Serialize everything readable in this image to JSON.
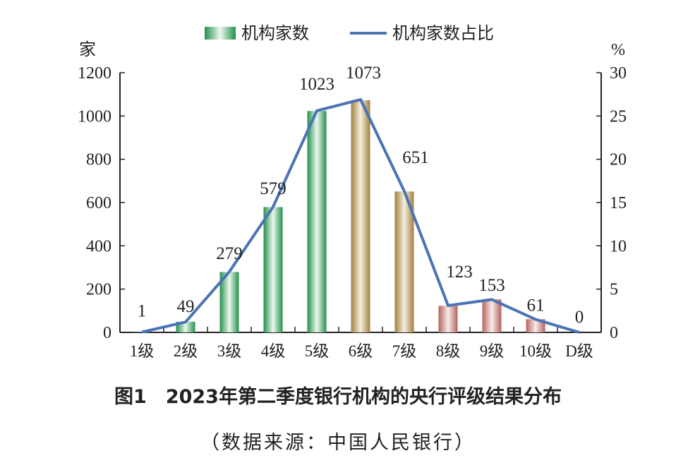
{
  "chart_data": {
    "type": "bar+line",
    "title": "图1　2023年第二季度银行机构的央行评级结果分布",
    "subtitle": "（数据来源：中国人民银行）",
    "categories": [
      "1级",
      "2级",
      "3级",
      "4级",
      "5级",
      "6级",
      "7级",
      "8级",
      "9级",
      "10级",
      "D级"
    ],
    "series": [
      {
        "name": "机构家数",
        "type": "bar",
        "axis": "left",
        "values": [
          1,
          49,
          279,
          579,
          1023,
          1073,
          651,
          123,
          153,
          61,
          0
        ],
        "colors": [
          "#2e9a55",
          "#2e9a55",
          "#2e9a55",
          "#2e9a55",
          "#2e9a55",
          "#a3823f",
          "#a3823f",
          "#b86a64",
          "#b86a64",
          "#b86a64",
          "#b86a64"
        ]
      },
      {
        "name": "机构家数占比",
        "type": "line",
        "axis": "right",
        "color": "#4a74b3",
        "values": [
          0.03,
          1.2,
          7.0,
          14.5,
          25.6,
          26.9,
          16.3,
          3.1,
          3.8,
          1.5,
          0
        ]
      }
    ],
    "ylabel_left": "家",
    "ylabel_right": "%",
    "ylim_left": [
      0,
      1200
    ],
    "ylim_right": [
      0,
      30
    ],
    "yticks_left": [
      "0",
      "200",
      "400",
      "600",
      "800",
      "1000",
      "1200"
    ],
    "yticks_right": [
      "0",
      "5",
      "10",
      "15",
      "20",
      "25",
      "30"
    ],
    "data_labels": [
      "1",
      "49",
      "279",
      "579",
      "1023",
      "1073",
      "651",
      "123",
      "153",
      "61",
      "0"
    ],
    "legend_position": "top",
    "grid": false
  }
}
